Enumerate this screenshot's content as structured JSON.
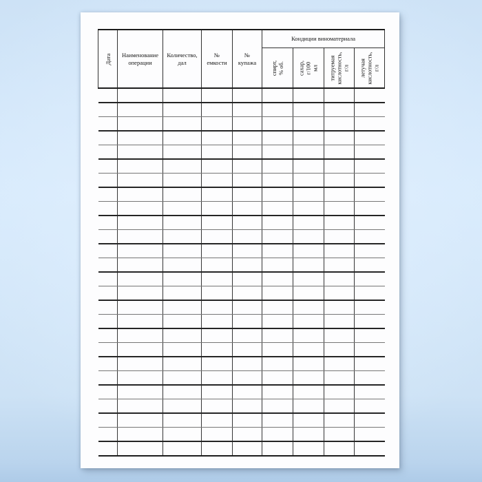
{
  "colors": {
    "background_center": "#e1f0fe",
    "background_edge": "#aecbe8",
    "paper": "#fdfdfe",
    "line_heavy": "#1c1c1c",
    "line_light": "#757575",
    "text": "#131313"
  },
  "table": {
    "group_header": {
      "label": "Кондиции виноматериала",
      "span": 4
    },
    "columns": [
      {
        "label": "Дата",
        "orientation": "vertical"
      },
      {
        "label": "Наименование\nоперации",
        "orientation": "horizontal"
      },
      {
        "label": "Количество,\nдал",
        "orientation": "horizontal"
      },
      {
        "label": "№\nемкости",
        "orientation": "horizontal"
      },
      {
        "label": "№\nкупажа",
        "orientation": "horizontal"
      },
      {
        "label": "спирт,\n% об.",
        "orientation": "vertical",
        "group": "Кондиции виноматериала"
      },
      {
        "label": "сахар,\nг/100 мл",
        "orientation": "vertical",
        "group": "Кондиции виноматериала"
      },
      {
        "label": "титруемая\nкислотность,\nг/л",
        "orientation": "vertical",
        "group": "Кондиции виноматериала"
      },
      {
        "label": "летучая\nкислотность,\nг/л",
        "orientation": "vertical",
        "group": "Кондиции виноматериала"
      }
    ],
    "body": {
      "rows": 26,
      "columns": 9,
      "cells_empty": true
    }
  }
}
